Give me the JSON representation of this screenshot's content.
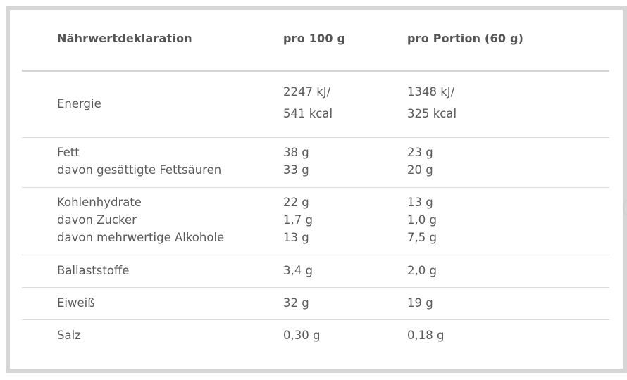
{
  "header": {
    "col1": "Nährwertdeklaration",
    "col2": "pro 100 g",
    "col3": "pro Portion (60 g)"
  },
  "rows": [
    {
      "labels": [
        "Energie"
      ],
      "per100": [
        "2247 kJ/",
        "541 kcal"
      ],
      "perPortion": [
        "1348 kJ/",
        "325 kcal"
      ]
    },
    {
      "labels": [
        "Fett",
        "davon gesättigte Fettsäuren"
      ],
      "per100": [
        "38 g",
        "33 g"
      ],
      "perPortion": [
        "23 g",
        "20 g"
      ]
    },
    {
      "labels": [
        "Kohlenhydrate",
        "davon Zucker",
        "davon mehrwertige Alkohole"
      ],
      "per100": [
        "22 g",
        "1,7 g",
        "13 g"
      ],
      "perPortion": [
        "13 g",
        "1,0 g",
        "7,5 g"
      ]
    },
    {
      "labels": [
        "Ballaststoffe"
      ],
      "per100": [
        "3,4 g"
      ],
      "perPortion": [
        "2,0 g"
      ]
    },
    {
      "labels": [
        "Eiweiß"
      ],
      "per100": [
        "32 g"
      ],
      "perPortion": [
        "19 g"
      ]
    },
    {
      "labels": [
        "Salz"
      ],
      "per100": [
        "0,30 g"
      ],
      "perPortion": [
        "0,18 g"
      ]
    }
  ]
}
